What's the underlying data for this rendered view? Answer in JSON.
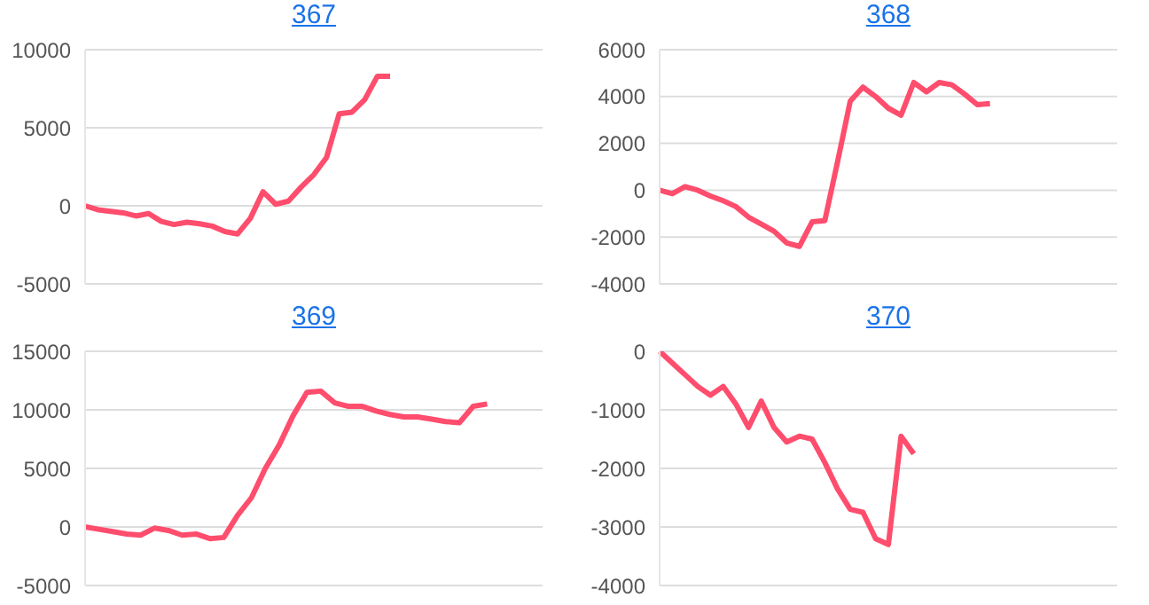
{
  "chart_data": [
    {
      "type": "line",
      "title": "367",
      "categories": [
        null,
        null,
        null,
        null,
        null,
        null,
        null,
        null,
        null,
        null,
        null,
        null,
        null,
        null,
        null,
        null,
        null,
        null,
        null,
        null,
        null,
        null,
        null,
        null,
        null,
        null,
        null,
        null,
        null,
        null,
        null,
        null,
        null,
        null,
        null,
        null,
        null
      ],
      "color": "#ff4d6d",
      "values": [
        0,
        -250,
        -350,
        -450,
        -650,
        -500,
        -1000,
        -1200,
        -1050,
        -1150,
        -1300,
        -1650,
        -1800,
        -800,
        900,
        100,
        300,
        1200,
        2000,
        3100,
        5900,
        6000,
        6800,
        8300,
        8300,
        null,
        null,
        null,
        null,
        null,
        null,
        null,
        null,
        null,
        null,
        null,
        null
      ],
      "ylim": [
        -5000,
        10000
      ],
      "yticks": [
        -5000,
        0,
        5000,
        10000
      ],
      "grid": "y",
      "tick_labels": "y"
    },
    {
      "type": "line",
      "title": "368",
      "categories": [
        null,
        null,
        null,
        null,
        null,
        null,
        null,
        null,
        null,
        null,
        null,
        null,
        null,
        null,
        null,
        null,
        null,
        null,
        null,
        null,
        null,
        null,
        null,
        null,
        null,
        null,
        null,
        null,
        null,
        null,
        null,
        null,
        null,
        null,
        null,
        null,
        null
      ],
      "color": "#ff4d6d",
      "values": [
        0,
        -150,
        150,
        0,
        -250,
        -450,
        -700,
        -1150,
        -1450,
        -1750,
        -2250,
        -2400,
        -1350,
        -1300,
        1200,
        3800,
        4400,
        4000,
        3500,
        3200,
        4600,
        4200,
        4600,
        4500,
        4100,
        3650,
        3700,
        null,
        null,
        null,
        null,
        null,
        null,
        null,
        null,
        null,
        null
      ],
      "ylim": [
        -4000,
        6000
      ],
      "yticks": [
        -4000,
        -2000,
        0,
        2000,
        4000,
        6000
      ],
      "grid": "y",
      "tick_labels": "y"
    },
    {
      "type": "line",
      "title": "369",
      "categories": [
        null,
        null,
        null,
        null,
        null,
        null,
        null,
        null,
        null,
        null,
        null,
        null,
        null,
        null,
        null,
        null,
        null,
        null,
        null,
        null,
        null,
        null,
        null,
        null,
        null,
        null,
        null,
        null,
        null,
        null,
        null,
        null,
        null,
        null
      ],
      "color": "#ff4d6d",
      "values": [
        0,
        -200,
        -400,
        -600,
        -700,
        -100,
        -300,
        -700,
        -600,
        -1000,
        -900,
        1000,
        2500,
        5000,
        7000,
        9500,
        11500,
        11600,
        10600,
        10300,
        10300,
        9900,
        9600,
        9400,
        9400,
        9200,
        9000,
        8900,
        10300,
        10500,
        null,
        null,
        null,
        null
      ],
      "ylim": [
        -5000,
        15000
      ],
      "yticks": [
        -5000,
        0,
        5000,
        10000,
        15000
      ],
      "grid": "y",
      "tick_labels": "y"
    },
    {
      "type": "line",
      "title": "370",
      "categories": [
        null,
        null,
        null,
        null,
        null,
        null,
        null,
        null,
        null,
        null,
        null,
        null,
        null,
        null,
        null,
        null,
        null,
        null,
        null,
        null,
        null,
        null,
        null,
        null,
        null,
        null,
        null,
        null,
        null,
        null,
        null,
        null,
        null,
        null,
        null,
        null,
        null
      ],
      "color": "#ff4d6d",
      "values": [
        0,
        -200,
        -400,
        -600,
        -750,
        -600,
        -900,
        -1300,
        -850,
        -1300,
        -1550,
        -1450,
        -1500,
        -1900,
        -2350,
        -2700,
        -2750,
        -3200,
        -3300,
        -1450,
        -1750,
        null,
        null,
        null,
        null,
        null,
        null,
        null,
        null,
        null,
        null,
        null,
        null,
        null,
        null,
        null,
        null
      ],
      "ylim": [
        -4000,
        0
      ],
      "yticks": [
        -4000,
        -3000,
        -2000,
        -1000,
        0
      ],
      "grid": "y",
      "tick_labels": "y"
    }
  ]
}
